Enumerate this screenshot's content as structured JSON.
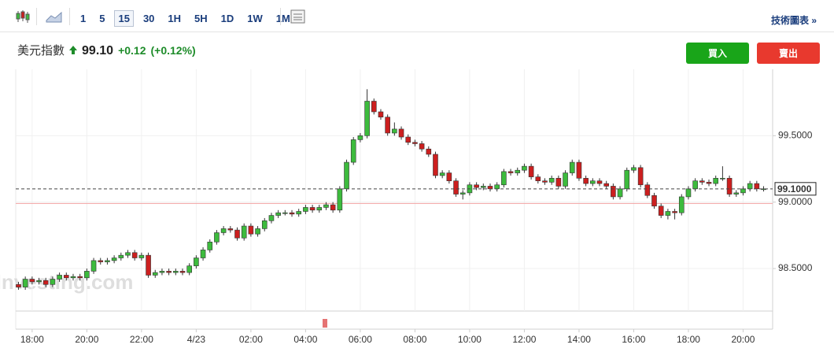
{
  "toolbar": {
    "intervals": [
      "1",
      "5",
      "15",
      "30",
      "1H",
      "5H",
      "1D",
      "1W",
      "1M"
    ],
    "active": "15",
    "link": "技術圖表 »"
  },
  "header": {
    "name": "美元指數",
    "price": "99.10",
    "change": "+0.12",
    "change_pct": "(+0.12%)",
    "buy": "買入",
    "sell": "賣出"
  },
  "chart_data": {
    "type": "candlestick",
    "watermark": "Investing.com",
    "up_color": "#3dbb3d",
    "down_color": "#cc1f1f",
    "x": [
      17.5,
      17.75,
      18,
      18.25,
      18.5,
      18.75,
      19,
      19.25,
      19.5,
      19.75,
      20,
      20.25,
      20.5,
      20.75,
      21,
      21.25,
      21.5,
      21.75,
      22,
      22.25,
      22.5,
      22.75,
      23,
      23.25,
      23.5,
      23.75,
      24,
      24.25,
      24.5,
      24.75,
      25,
      25.25,
      25.5,
      25.75,
      26,
      26.25,
      26.5,
      26.75,
      27,
      27.25,
      27.5,
      27.75,
      28,
      28.25,
      28.5,
      28.75,
      29,
      29.25,
      29.5,
      29.75,
      30,
      30.25,
      30.5,
      30.75,
      31,
      31.25,
      31.5,
      31.75,
      32,
      32.25,
      32.5,
      32.75,
      33,
      33.25,
      33.5,
      33.75,
      34,
      34.25,
      34.5,
      34.75,
      35,
      35.25,
      35.5,
      35.75,
      36,
      36.25,
      36.5,
      36.75,
      37,
      37.25,
      37.5,
      37.75,
      38,
      38.25,
      38.5,
      38.75,
      39,
      39.25,
      39.5,
      39.75,
      40,
      40.25,
      40.5,
      40.75,
      41,
      41.25,
      41.5,
      41.75,
      42,
      42.25,
      42.5,
      42.75,
      43,
      43.25,
      43.5,
      43.75,
      44,
      44.25,
      44.5,
      44.75
    ],
    "open": [
      98.38,
      98.36,
      98.42,
      98.4,
      98.41,
      98.38,
      98.42,
      98.45,
      98.43,
      98.44,
      98.43,
      98.48,
      98.56,
      98.55,
      98.56,
      98.58,
      98.6,
      98.62,
      98.58,
      98.6,
      98.45,
      98.47,
      98.48,
      98.47,
      98.48,
      98.47,
      98.52,
      98.58,
      98.64,
      98.7,
      98.77,
      98.8,
      98.79,
      98.73,
      98.82,
      98.76,
      98.8,
      98.86,
      98.9,
      98.92,
      98.92,
      98.91,
      98.93,
      98.96,
      98.94,
      98.96,
      98.98,
      98.94,
      99.1,
      99.3,
      99.47,
      99.5,
      99.76,
      99.68,
      99.64,
      99.52,
      99.55,
      99.49,
      99.45,
      99.44,
      99.4,
      99.36,
      99.2,
      99.22,
      99.16,
      99.06,
      99.07,
      99.13,
      99.11,
      99.12,
      99.1,
      99.13,
      99.23,
      99.22,
      99.24,
      99.27,
      99.19,
      99.16,
      99.15,
      99.18,
      99.12,
      99.22,
      99.3,
      99.18,
      99.14,
      99.16,
      99.14,
      99.12,
      99.04,
      99.1,
      99.24,
      99.26,
      99.13,
      99.05,
      98.97,
      98.9,
      98.93,
      98.92,
      99.04,
      99.1,
      99.16,
      99.15,
      99.14,
      99.18,
      99.18,
      99.06,
      99.07,
      99.1,
      99.14,
      99.1
    ],
    "high": [
      98.4,
      98.44,
      98.44,
      98.43,
      98.43,
      98.44,
      98.47,
      98.47,
      98.46,
      98.46,
      98.5,
      98.58,
      98.58,
      98.58,
      98.6,
      98.62,
      98.64,
      98.64,
      98.62,
      98.62,
      98.49,
      98.5,
      98.5,
      98.5,
      98.5,
      98.54,
      98.6,
      98.66,
      98.72,
      98.79,
      98.82,
      98.82,
      98.81,
      98.84,
      98.84,
      98.82,
      98.88,
      98.92,
      98.94,
      98.94,
      98.94,
      98.95,
      98.98,
      98.98,
      98.98,
      99.0,
      99.0,
      99.12,
      99.32,
      99.49,
      99.52,
      99.85,
      99.78,
      99.7,
      99.66,
      99.6,
      99.57,
      99.51,
      99.47,
      99.46,
      99.42,
      99.38,
      99.24,
      99.24,
      99.18,
      99.09,
      99.15,
      99.15,
      99.14,
      99.14,
      99.15,
      99.25,
      99.25,
      99.26,
      99.29,
      99.29,
      99.21,
      99.18,
      99.2,
      99.2,
      99.24,
      99.32,
      99.32,
      99.2,
      99.18,
      99.18,
      99.16,
      99.14,
      99.12,
      99.26,
      99.28,
      99.28,
      99.15,
      99.07,
      98.99,
      98.95,
      98.95,
      99.06,
      99.12,
      99.18,
      99.18,
      99.17,
      99.2,
      99.27,
      99.2,
      99.09,
      99.12,
      99.16,
      99.16,
      99.12
    ],
    "low": [
      98.34,
      98.34,
      98.38,
      98.38,
      98.36,
      98.36,
      98.4,
      98.41,
      98.41,
      98.41,
      98.41,
      98.46,
      98.53,
      98.53,
      98.54,
      98.56,
      98.58,
      98.56,
      98.56,
      98.43,
      98.43,
      98.45,
      98.45,
      98.45,
      98.45,
      98.45,
      98.5,
      98.56,
      98.62,
      98.68,
      98.75,
      98.77,
      98.71,
      98.71,
      98.74,
      98.74,
      98.78,
      98.84,
      98.88,
      98.9,
      98.89,
      98.89,
      98.91,
      98.92,
      98.92,
      98.94,
      98.92,
      98.92,
      99.08,
      99.28,
      99.45,
      99.48,
      99.66,
      99.62,
      99.5,
      99.5,
      99.47,
      99.43,
      99.42,
      99.38,
      99.34,
      99.18,
      99.18,
      99.14,
      99.04,
      99.02,
      99.05,
      99.09,
      99.09,
      99.08,
      99.08,
      99.11,
      99.2,
      99.2,
      99.22,
      99.17,
      99.14,
      99.13,
      99.13,
      99.1,
      99.1,
      99.2,
      99.16,
      99.12,
      99.12,
      99.12,
      99.1,
      99.02,
      99.02,
      99.08,
      99.22,
      99.11,
      99.03,
      98.95,
      98.88,
      98.87,
      98.87,
      98.9,
      99.02,
      99.08,
      99.13,
      99.12,
      99.12,
      99.16,
      99.04,
      99.04,
      99.05,
      99.08,
      99.08,
      99.08
    ],
    "close": [
      98.36,
      98.42,
      98.4,
      98.41,
      98.38,
      98.42,
      98.45,
      98.43,
      98.44,
      98.43,
      98.48,
      98.56,
      98.55,
      98.56,
      98.58,
      98.6,
      98.62,
      98.58,
      98.6,
      98.45,
      98.47,
      98.48,
      98.47,
      98.48,
      98.47,
      98.52,
      98.58,
      98.64,
      98.7,
      98.77,
      98.8,
      98.79,
      98.73,
      98.82,
      98.76,
      98.8,
      98.86,
      98.9,
      98.92,
      98.92,
      98.91,
      98.93,
      98.96,
      98.94,
      98.96,
      98.98,
      98.94,
      99.1,
      99.3,
      99.47,
      99.5,
      99.76,
      99.68,
      99.64,
      99.52,
      99.55,
      99.49,
      99.45,
      99.44,
      99.4,
      99.36,
      99.2,
      99.22,
      99.16,
      99.06,
      99.07,
      99.13,
      99.11,
      99.12,
      99.1,
      99.13,
      99.23,
      99.22,
      99.24,
      99.27,
      99.19,
      99.16,
      99.15,
      99.18,
      99.12,
      99.22,
      99.3,
      99.18,
      99.14,
      99.16,
      99.14,
      99.12,
      99.04,
      99.1,
      99.24,
      99.26,
      99.13,
      99.05,
      98.97,
      98.9,
      98.93,
      98.92,
      99.04,
      99.1,
      99.16,
      99.15,
      99.14,
      99.18,
      99.18,
      99.06,
      99.07,
      99.1,
      99.14,
      99.1,
      99.1
    ],
    "xlim": [
      17.4,
      45.08
    ],
    "xticks": [
      {
        "value": 18,
        "label": "18:00"
      },
      {
        "value": 20,
        "label": "20:00"
      },
      {
        "value": 22,
        "label": "22:00"
      },
      {
        "value": 24,
        "label": "4/23"
      },
      {
        "value": 26,
        "label": "02:00"
      },
      {
        "value": 28,
        "label": "04:00"
      },
      {
        "value": 30,
        "label": "06:00"
      },
      {
        "value": 32,
        "label": "08:00"
      },
      {
        "value": 34,
        "label": "10:00"
      },
      {
        "value": 36,
        "label": "12:00"
      },
      {
        "value": 38,
        "label": "14:00"
      },
      {
        "value": 40,
        "label": "16:00"
      },
      {
        "value": 42,
        "label": "18:00"
      },
      {
        "value": 44,
        "label": "20:00"
      }
    ],
    "ylim": [
      98.18,
      100.0
    ],
    "yticks": [
      {
        "value": 98.5,
        "label": "98.5000"
      },
      {
        "value": 99.0,
        "label": "99.0000"
      },
      {
        "value": 99.5,
        "label": "99.5000"
      }
    ],
    "last_price": {
      "value": 99.1,
      "label": "99.1000"
    },
    "reference_line": 98.99,
    "reference_color": "#f2a3a3",
    "grid": true
  }
}
